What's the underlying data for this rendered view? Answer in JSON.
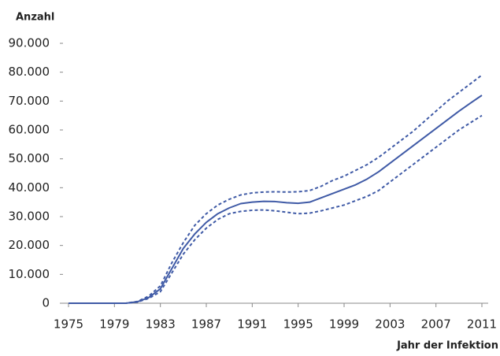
{
  "chart_data": {
    "type": "line",
    "y_axis_label": "Anzahl",
    "x_axis_label": "Jahr der Infektion",
    "x": [
      1975,
      1976,
      1977,
      1978,
      1979,
      1980,
      1981,
      1982,
      1983,
      1984,
      1985,
      1986,
      1987,
      1988,
      1989,
      1990,
      1991,
      1992,
      1993,
      1994,
      1995,
      1996,
      1997,
      1998,
      1999,
      2000,
      2001,
      2002,
      2003,
      2004,
      2005,
      2006,
      2007,
      2008,
      2009,
      2010,
      2011
    ],
    "series": [
      {
        "color": "#3f5aa6",
        "style": "solid",
        "values": [
          0,
          0,
          0,
          0,
          0,
          0,
          500,
          2000,
          5000,
          12000,
          19000,
          24000,
          28000,
          31000,
          33000,
          34500,
          35000,
          35300,
          35200,
          34800,
          34600,
          35000,
          36500,
          38000,
          39500,
          41000,
          43000,
          45500,
          48500,
          51500,
          54500,
          57500,
          60500,
          63500,
          66500,
          69300,
          72000
        ]
      },
      {
        "color": "#3f5aa6",
        "style": "dotted",
        "values": [
          0,
          0,
          0,
          0,
          0,
          0,
          600,
          2500,
          6000,
          14000,
          21000,
          27000,
          31000,
          34000,
          36000,
          37500,
          38200,
          38500,
          38600,
          38500,
          38600,
          39000,
          40500,
          42500,
          44000,
          46000,
          48000,
          50500,
          53500,
          56500,
          59500,
          63000,
          66500,
          70000,
          73000,
          76000,
          79000
        ]
      },
      {
        "color": "#3f5aa6",
        "style": "dotted",
        "values": [
          0,
          0,
          0,
          0,
          0,
          0,
          400,
          1700,
          4000,
          10500,
          17000,
          22000,
          26000,
          29000,
          31000,
          31800,
          32200,
          32300,
          32000,
          31500,
          31000,
          31200,
          32000,
          33000,
          34000,
          35500,
          37000,
          39000,
          42000,
          45000,
          48000,
          51000,
          54000,
          57000,
          60000,
          62500,
          65000
        ]
      }
    ],
    "xlim": [
      1975,
      2011
    ],
    "xticks": [
      1975,
      1979,
      1983,
      1987,
      1991,
      1995,
      1999,
      2003,
      2007,
      2011
    ],
    "ylim": [
      0,
      90000
    ],
    "yticks": [
      0,
      {
        "value": 10000,
        "label": "10.000"
      },
      {
        "value": 20000,
        "label": "20.000"
      },
      {
        "value": 30000,
        "label": "30.000"
      },
      {
        "value": 40000,
        "label": "40.000"
      },
      {
        "value": 50000,
        "label": "50.000"
      },
      {
        "value": 60000,
        "label": "60.000"
      },
      {
        "value": 70000,
        "label": "70.000"
      },
      {
        "value": 80000,
        "label": "80.000"
      },
      {
        "value": 90000,
        "label": "90.000"
      }
    ]
  }
}
